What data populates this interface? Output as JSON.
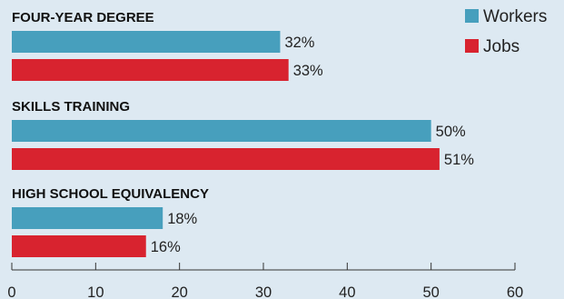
{
  "chart_data": {
    "type": "bar",
    "orientation": "horizontal",
    "categories": [
      "FOUR-YEAR DEGREE",
      "SKILLS TRAINING",
      "HIGH SCHOOL EQUIVALENCY"
    ],
    "series": [
      {
        "name": "Workers",
        "values": [
          32,
          50,
          18
        ],
        "labels": [
          "32%",
          "50%",
          "18%"
        ],
        "color": "#479fbd"
      },
      {
        "name": "Jobs",
        "values": [
          33,
          51,
          16
        ],
        "labels": [
          "33%",
          "51%",
          "16%"
        ],
        "color": "#d8232f"
      }
    ],
    "xlim": [
      0,
      60
    ],
    "xticks": [
      0,
      10,
      20,
      30,
      40,
      50,
      60
    ],
    "legend": "top-right",
    "grid": false
  },
  "colors": {
    "background": "#dde9f2",
    "workers": "#479fbd",
    "jobs": "#d8232f"
  }
}
